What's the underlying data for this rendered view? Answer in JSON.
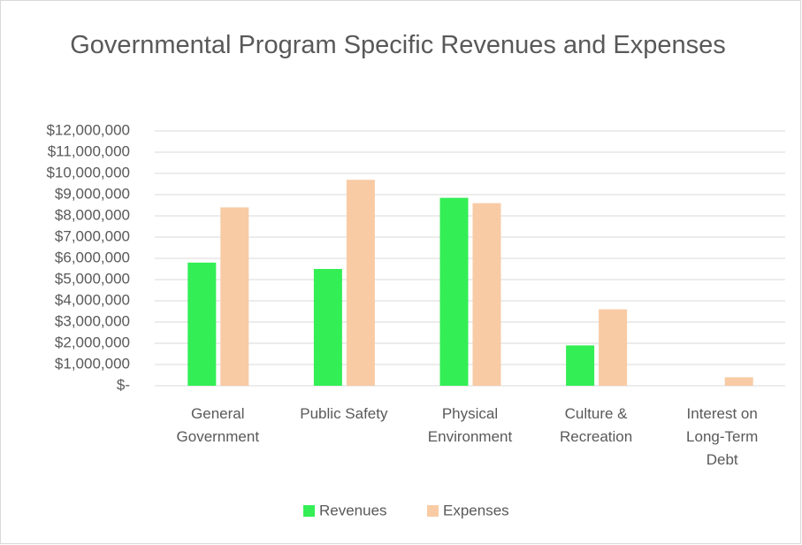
{
  "chart_data": {
    "type": "bar",
    "title": "Governmental Program Specific Revenues and Expenses",
    "categories": [
      "General Government",
      "Public Safety",
      "Physical Environment",
      "Culture & Recreation",
      "Interest on Long-Term Debt"
    ],
    "series": [
      {
        "name": "Revenues",
        "color": "#33ee55",
        "values": [
          5800000,
          5500000,
          8850000,
          1900000,
          0
        ]
      },
      {
        "name": "Expenses",
        "color": "#f8cba5",
        "values": [
          8400000,
          9700000,
          8600000,
          3600000,
          400000
        ]
      }
    ],
    "ylim": [
      0,
      12000000
    ],
    "yticks": [
      {
        "value": 0,
        "label": "$-"
      },
      {
        "value": 1000000,
        "label": "$1,000,000"
      },
      {
        "value": 2000000,
        "label": "$2,000,000"
      },
      {
        "value": 3000000,
        "label": "$3,000,000"
      },
      {
        "value": 4000000,
        "label": "$4,000,000"
      },
      {
        "value": 5000000,
        "label": "$5,000,000"
      },
      {
        "value": 6000000,
        "label": "$6,000,000"
      },
      {
        "value": 7000000,
        "label": "$7,000,000"
      },
      {
        "value": 8000000,
        "label": "$8,000,000"
      },
      {
        "value": 9000000,
        "label": "$9,000,000"
      },
      {
        "value": 10000000,
        "label": "$10,000,000"
      },
      {
        "value": 11000000,
        "label": "$11,000,000"
      },
      {
        "value": 12000000,
        "label": "$12,000,000"
      }
    ],
    "grid": true,
    "legend": "bottom"
  }
}
